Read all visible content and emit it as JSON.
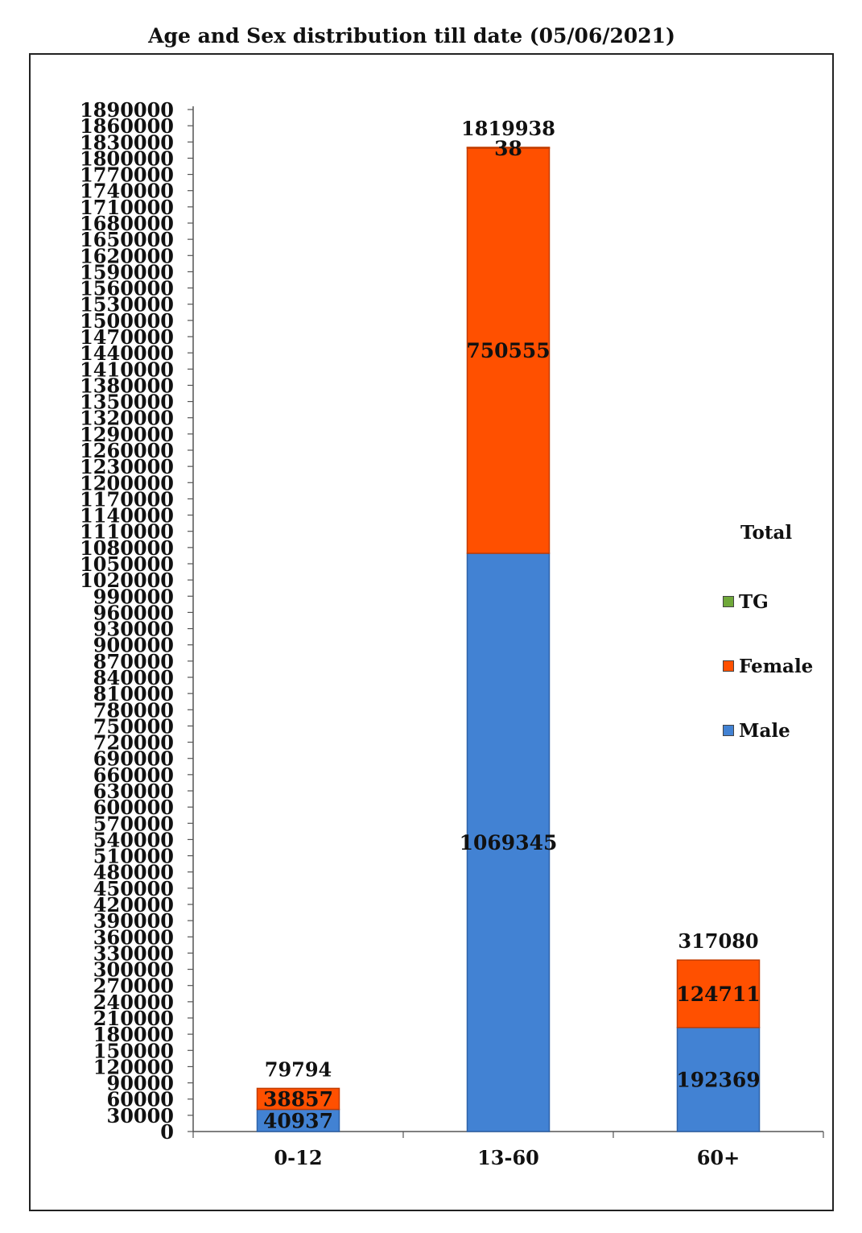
{
  "chart_data": {
    "type": "bar",
    "stacked": true,
    "title": "Age and Sex distribution till date (05/06/2021)",
    "categories": [
      "0-12",
      "13-60",
      "60+"
    ],
    "series": [
      {
        "name": "Male",
        "values": [
          40937,
          1069345,
          192369
        ],
        "color": "#4282D3"
      },
      {
        "name": "Female",
        "values": [
          38857,
          750555,
          124711
        ],
        "color": "#FF5000"
      },
      {
        "name": "TG",
        "values": [
          0,
          38,
          0
        ],
        "color": "#6FA83A"
      }
    ],
    "segment_labels": [
      [
        "40937",
        "38857",
        ""
      ],
      [
        "1069345",
        "750555",
        "38"
      ],
      [
        "192369",
        "124711",
        ""
      ]
    ],
    "totals": [
      79794,
      1819938,
      317080
    ],
    "total_labels": [
      "79794",
      "1819938",
      "317080"
    ],
    "ylim": [
      0,
      1890000
    ],
    "y_tick_step": 30000,
    "legend": {
      "title": "Total",
      "placement": "right",
      "items": [
        {
          "label": "TG",
          "color": "#6FA83A"
        },
        {
          "label": "Female",
          "color": "#FF5000"
        },
        {
          "label": "Male",
          "color": "#4282D3"
        }
      ]
    },
    "grid": false,
    "xlabel": "",
    "ylabel": ""
  }
}
